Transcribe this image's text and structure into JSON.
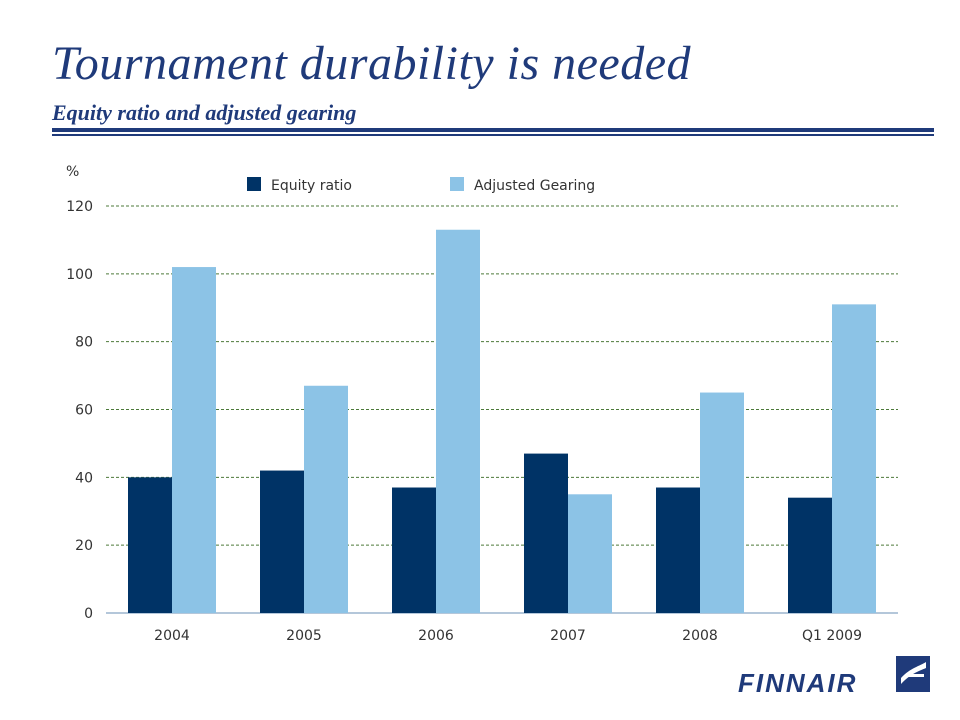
{
  "header": {
    "title": "Tournament durability is needed",
    "subtitle": "Equity ratio and adjusted gearing"
  },
  "colors": {
    "brand": "#1f3a7a",
    "equity": "#003366",
    "gearing": "#8cc3e6",
    "grid": "#4d7a3a"
  },
  "logo": {
    "text": "FINNAIR",
    "icon": "finnair-flag-icon"
  },
  "chart_data": {
    "type": "bar",
    "unit_label": "%",
    "categories": [
      "2004",
      "2005",
      "2006",
      "2007",
      "2008",
      "Q1  2009"
    ],
    "series": [
      {
        "name": "Equity ratio",
        "values": [
          40,
          42,
          37,
          47,
          37,
          34
        ]
      },
      {
        "name": "Adjusted Gearing",
        "values": [
          102,
          67,
          113,
          35,
          65,
          91
        ]
      }
    ],
    "ylim": [
      0,
      120
    ],
    "yticks": [
      0,
      20,
      40,
      60,
      80,
      100,
      120
    ],
    "grid": true,
    "legend": "top"
  }
}
